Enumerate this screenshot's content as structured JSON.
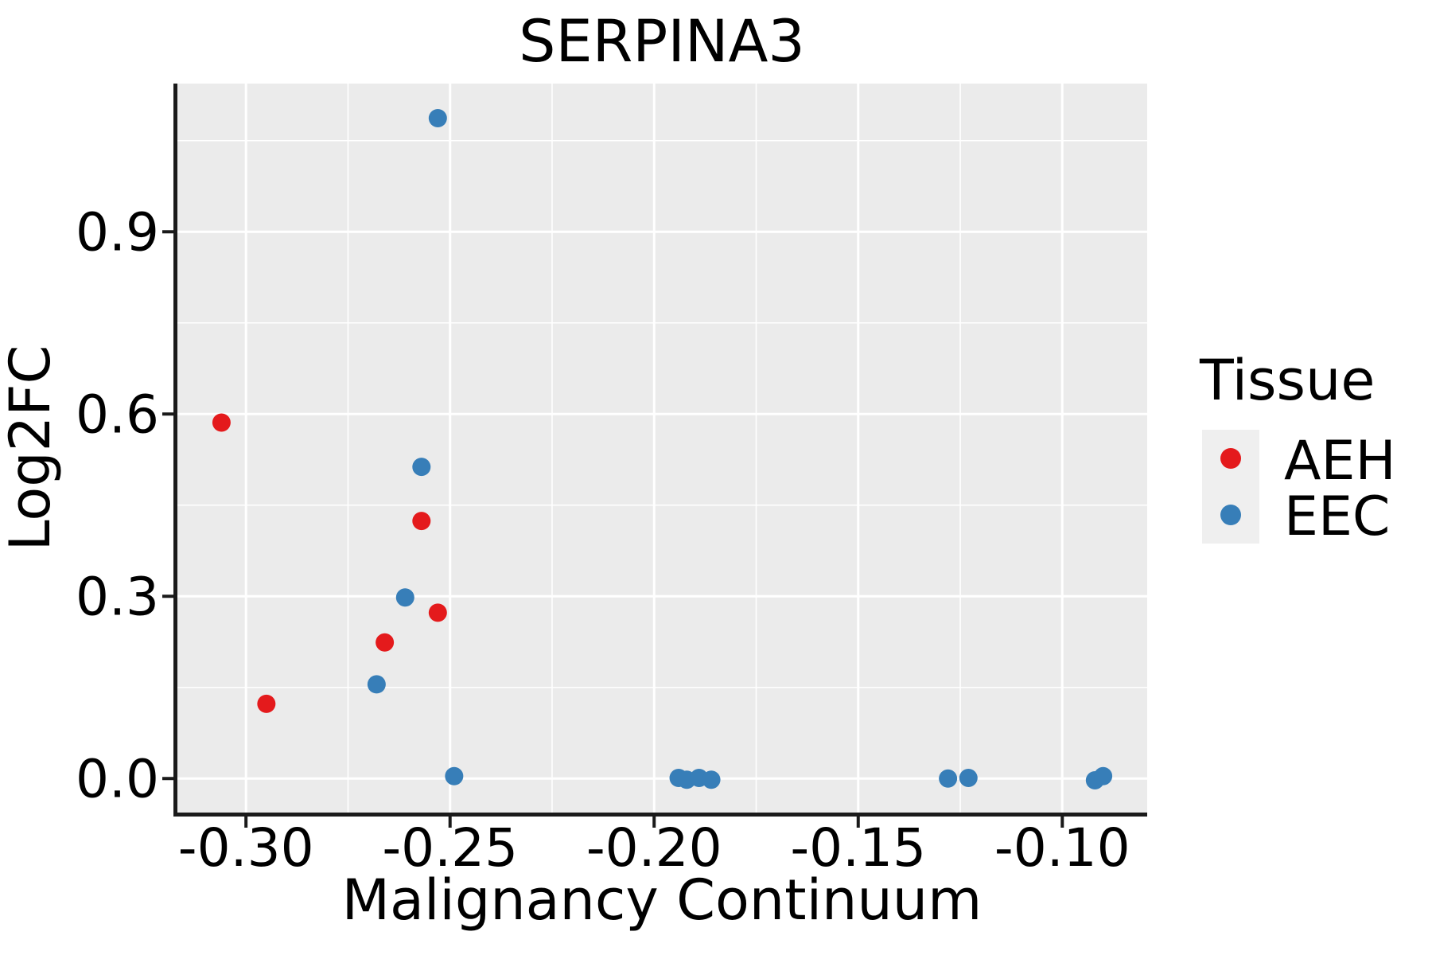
{
  "title": "SERPINA3",
  "axes": {
    "x_label": "Malignancy Continuum",
    "y_label": "Log2FC"
  },
  "legend": {
    "title": "Tissue",
    "entries": [
      {
        "label": "AEH",
        "color": "#E41A1C"
      },
      {
        "label": "EEC",
        "color": "#377EB8"
      }
    ]
  },
  "colors": {
    "aeh": "#E41A1C",
    "eec": "#377EB8",
    "panel_bg": "#EBEBEB",
    "grid": "#FFFFFF",
    "axis_line": "#1A1A1A",
    "text": "#000000",
    "legend_key_bg": "#EFEFEF"
  },
  "chart_data": {
    "type": "scatter",
    "title": "SERPINA3",
    "xlabel": "Malignancy Continuum",
    "ylabel": "Log2FC",
    "xlim": [
      -0.3168,
      -0.0792
    ],
    "ylim": [
      -0.056,
      1.144
    ],
    "x_ticks": [
      -0.3,
      -0.25,
      -0.2,
      -0.15,
      -0.1
    ],
    "x_tick_labels": [
      "-0.30",
      "-0.25",
      "-0.20",
      "-0.15",
      "-0.10"
    ],
    "x_minor_ticks": [
      -0.275,
      -0.225,
      -0.175,
      -0.125
    ],
    "y_ticks": [
      0.0,
      0.3,
      0.6,
      0.9
    ],
    "y_tick_labels": [
      "0.0",
      "0.3",
      "0.6",
      "0.9"
    ],
    "y_minor_ticks": [
      0.15,
      0.45,
      0.75,
      1.05
    ],
    "grid": true,
    "legend_position": "right",
    "legend_title": "Tissue",
    "series": [
      {
        "name": "AEH",
        "color": "#E41A1C",
        "points": [
          [
            -0.306,
            0.586
          ],
          [
            -0.295,
            0.123
          ],
          [
            -0.266,
            0.224
          ],
          [
            -0.257,
            0.424
          ],
          [
            -0.253,
            0.273
          ]
        ]
      },
      {
        "name": "EEC",
        "color": "#377EB8",
        "points": [
          [
            -0.253,
            1.087
          ],
          [
            -0.257,
            0.513
          ],
          [
            -0.261,
            0.298
          ],
          [
            -0.268,
            0.155
          ],
          [
            -0.249,
            0.004
          ],
          [
            -0.194,
            0.001
          ],
          [
            -0.192,
            -0.002
          ],
          [
            -0.189,
            0.001
          ],
          [
            -0.186,
            -0.002
          ],
          [
            -0.128,
            0.0
          ],
          [
            -0.123,
            0.001
          ],
          [
            -0.092,
            -0.003
          ],
          [
            -0.09,
            0.004
          ]
        ]
      }
    ]
  }
}
